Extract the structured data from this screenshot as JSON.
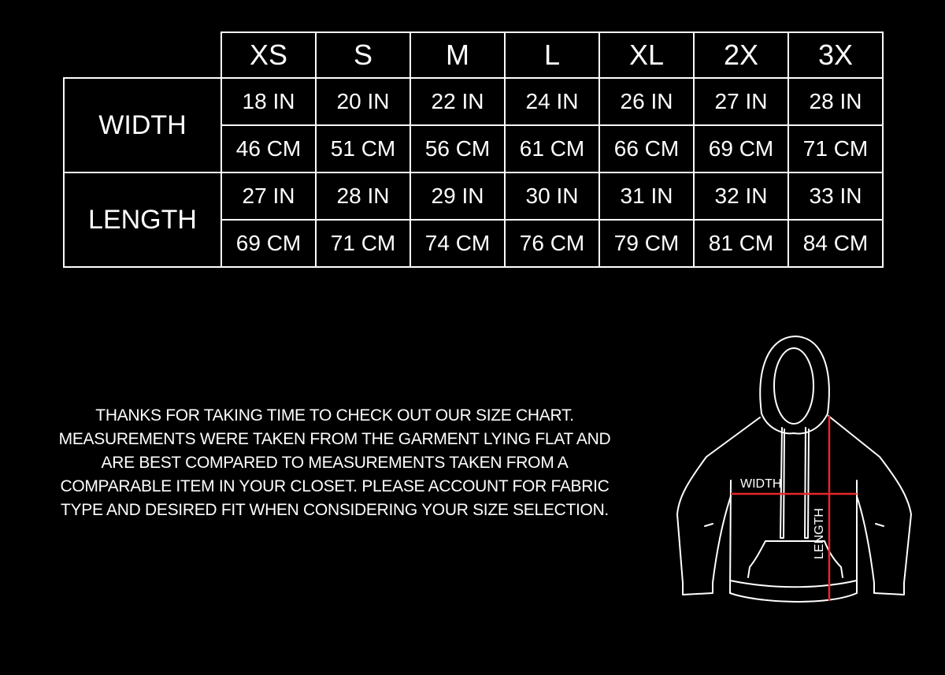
{
  "sizes": [
    "XS",
    "S",
    "M",
    "L",
    "XL",
    "2X",
    "3X"
  ],
  "rows": [
    {
      "label": "WIDTH",
      "inches": [
        "18 IN",
        "20 IN",
        "22 IN",
        "24 IN",
        "26 IN",
        "27 IN",
        "28 IN"
      ],
      "cm": [
        "46 CM",
        "51 CM",
        "56 CM",
        "61 CM",
        "66 CM",
        "69 CM",
        "71 CM"
      ]
    },
    {
      "label": "LENGTH",
      "inches": [
        "27 IN",
        "28 IN",
        "29 IN",
        "30 IN",
        "31 IN",
        "32 IN",
        "33 IN"
      ],
      "cm": [
        "69 CM",
        "71 CM",
        "74 CM",
        "76 CM",
        "79 CM",
        "81 CM",
        "84 CM"
      ]
    }
  ],
  "note": "THANKS FOR TAKING TIME TO CHECK OUT OUR SIZE CHART. MEASUREMENTS WERE TAKEN FROM THE GARMENT LYING FLAT AND ARE BEST COMPARED TO MEASUREMENTS TAKEN FROM A COMPARABLE ITEM IN YOUR CLOSET. PLEASE ACCOUNT FOR FABRIC TYPE AND DESIRED FIT WHEN CONSIDERING YOUR SIZE SELECTION.",
  "diagram": {
    "width_label": "WIDTH",
    "length_label": "LENGTH",
    "measure_color": "#e8262a"
  }
}
